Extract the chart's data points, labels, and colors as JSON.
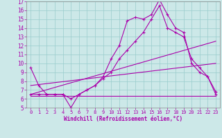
{
  "xlabel": "Windchill (Refroidissement éolien,°C)",
  "bg_color": "#cce8e8",
  "line_color": "#aa00aa",
  "grid_color": "#99cccc",
  "ylim": [
    5,
    17
  ],
  "xlim": [
    -0.5,
    23.5
  ],
  "yticks": [
    5,
    6,
    7,
    8,
    9,
    10,
    11,
    12,
    13,
    14,
    15,
    16,
    17
  ],
  "xticks": [
    0,
    1,
    2,
    3,
    4,
    5,
    6,
    7,
    8,
    9,
    10,
    11,
    12,
    13,
    14,
    15,
    16,
    17,
    18,
    19,
    20,
    21,
    22,
    23
  ],
  "hours": [
    0,
    1,
    2,
    3,
    4,
    5,
    6,
    7,
    8,
    9,
    10,
    11,
    12,
    13,
    14,
    15,
    16,
    17,
    18,
    19,
    20,
    21,
    22,
    23
  ],
  "line1": [
    9.5,
    7.5,
    6.5,
    6.5,
    6.5,
    5.0,
    6.5,
    7.0,
    7.5,
    8.5,
    10.5,
    12.0,
    14.8,
    15.2,
    15.0,
    15.5,
    17.2,
    15.5,
    14.0,
    13.5,
    10.0,
    9.0,
    8.5,
    6.8
  ],
  "line2": [
    6.5,
    6.5,
    6.5,
    6.5,
    6.5,
    6.0,
    6.5,
    7.0,
    7.5,
    8.3,
    9.0,
    10.5,
    11.5,
    12.5,
    13.5,
    15.0,
    16.5,
    14.0,
    13.5,
    13.0,
    10.5,
    9.5,
    8.5,
    6.5
  ],
  "line_diag1": [
    [
      0,
      6.5
    ],
    [
      23,
      12.5
    ]
  ],
  "line_diag2": [
    [
      0,
      7.5
    ],
    [
      23,
      10.0
    ]
  ],
  "line_flat": [
    [
      0,
      6.3
    ],
    [
      16,
      6.3
    ],
    [
      23,
      6.3
    ]
  ]
}
